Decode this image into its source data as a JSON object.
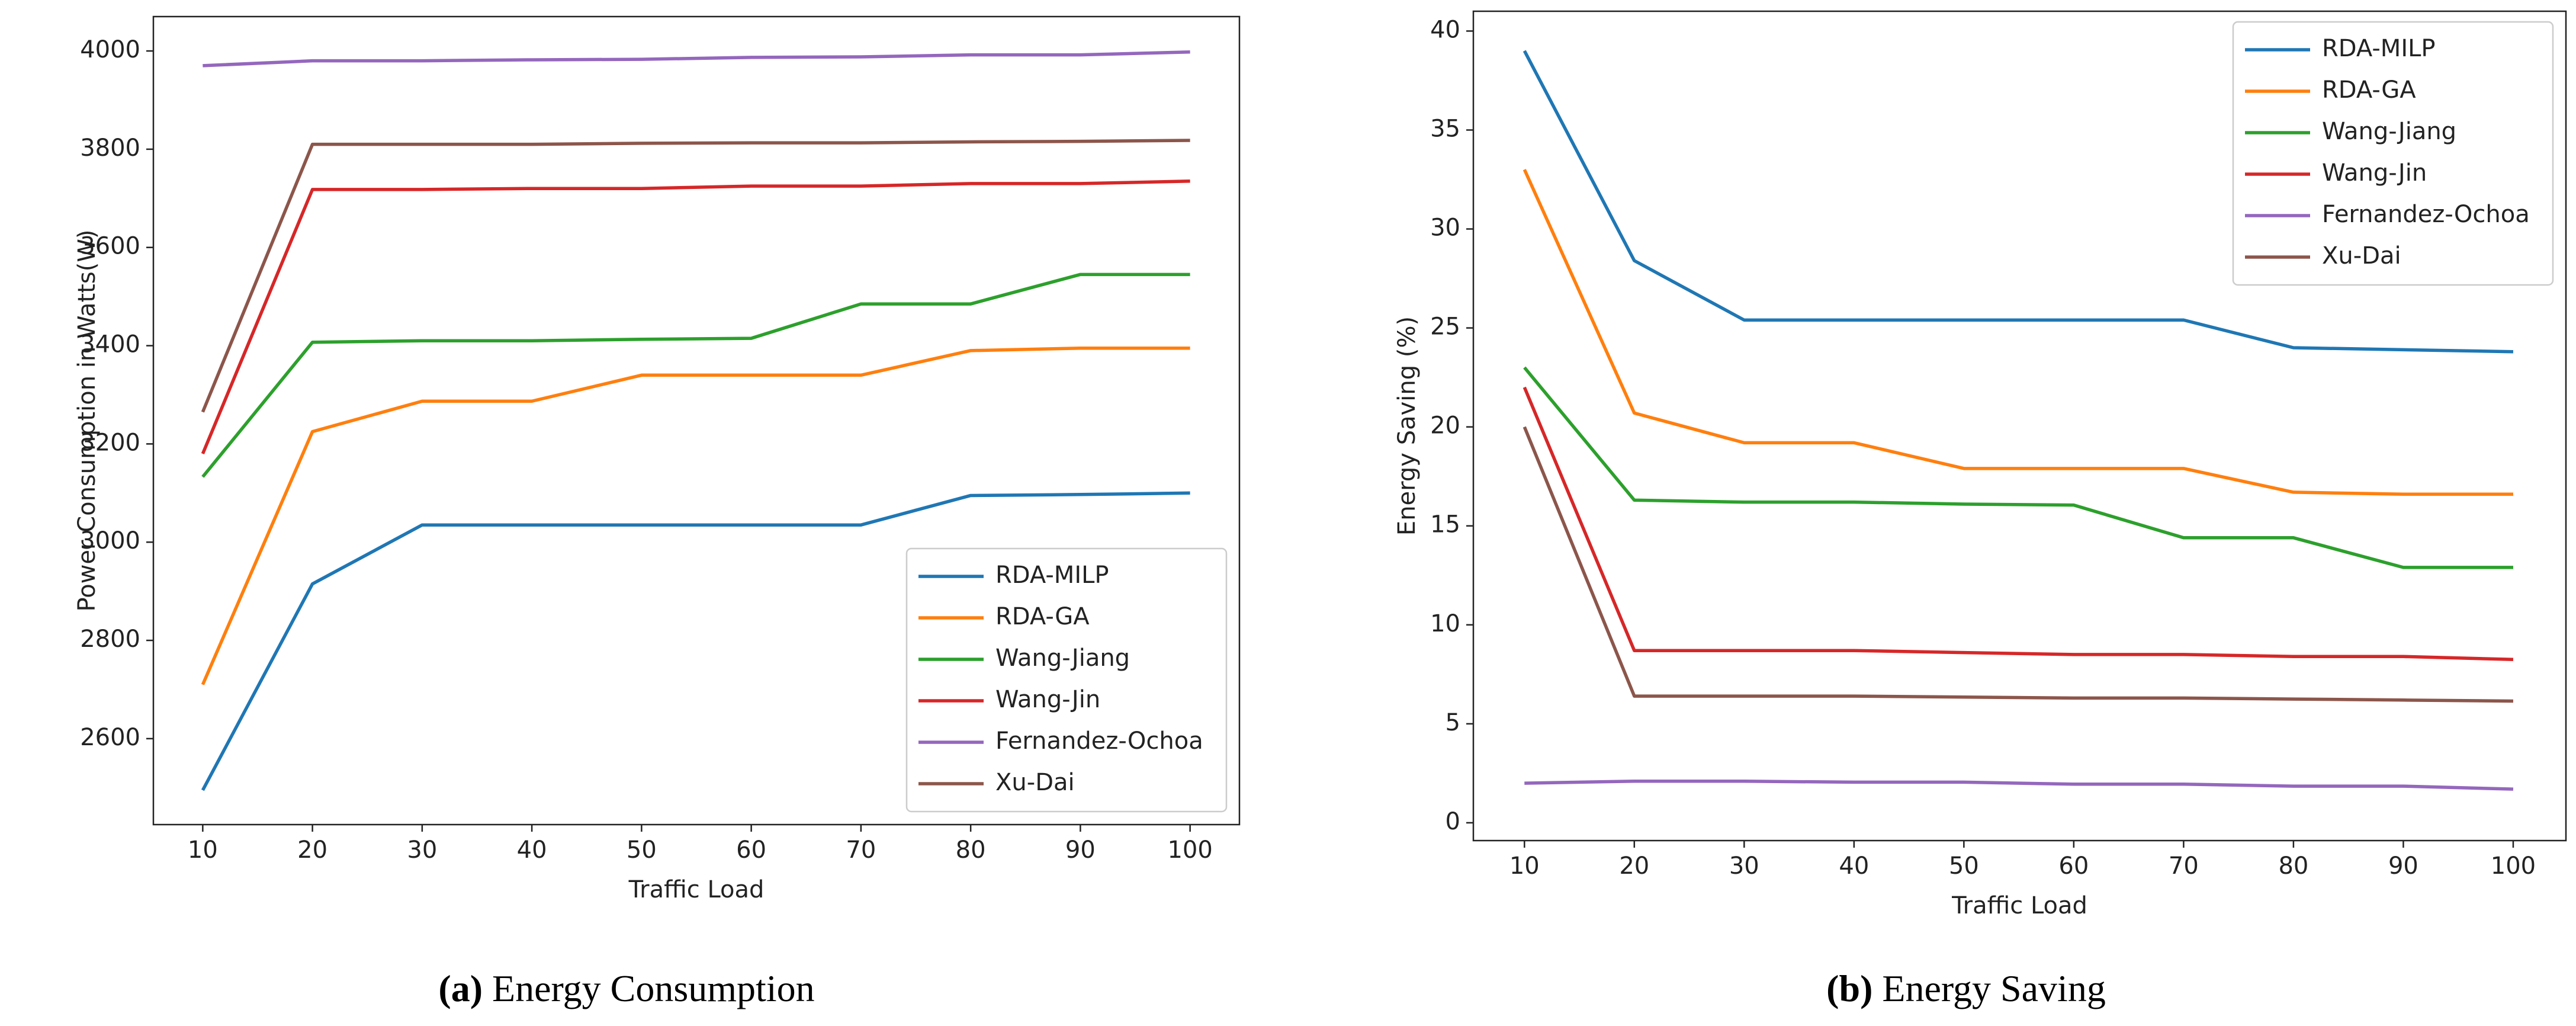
{
  "chart_data": [
    {
      "type": "line",
      "caption_label": "(a)",
      "caption": "Energy Consumption",
      "xlabel": "Traffic Load",
      "ylabel": "Power Consumption in Watts(W)",
      "x": [
        10,
        20,
        30,
        40,
        50,
        60,
        70,
        80,
        90,
        100
      ],
      "xlim": [
        5.5,
        104.5
      ],
      "xticks": [
        10,
        20,
        30,
        40,
        50,
        60,
        70,
        80,
        90,
        100
      ],
      "ylim": [
        2425,
        4070
      ],
      "yticks": [
        2600,
        2800,
        3000,
        3200,
        3400,
        3600,
        3800,
        4000
      ],
      "legend": "lower right",
      "series": [
        {
          "name": "RDA-MILP",
          "color": "#1f77b4",
          "values": [
            2495,
            2915,
            3035,
            3035,
            3035,
            3035,
            3035,
            3095,
            3097,
            3100
          ]
        },
        {
          "name": "RDA-GA",
          "color": "#ff7f0e",
          "values": [
            2710,
            3225,
            3287,
            3287,
            3340,
            3340,
            3340,
            3390,
            3395,
            3395
          ]
        },
        {
          "name": "Wang-Jiang",
          "color": "#2ca02c",
          "values": [
            3133,
            3407,
            3410,
            3410,
            3413,
            3415,
            3485,
            3485,
            3545,
            3545
          ]
        },
        {
          "name": "Wang-Jin",
          "color": "#d62728",
          "values": [
            3180,
            3718,
            3718,
            3720,
            3720,
            3725,
            3725,
            3730,
            3730,
            3735
          ]
        },
        {
          "name": "Fernandez-Ochoa",
          "color": "#9467bd",
          "values": [
            3970,
            3980,
            3980,
            3982,
            3983,
            3987,
            3988,
            3992,
            3992,
            3998
          ]
        },
        {
          "name": "Xu-Dai",
          "color": "#8c564b",
          "values": [
            3265,
            3810,
            3810,
            3810,
            3812,
            3813,
            3813,
            3815,
            3816,
            3818
          ]
        }
      ]
    },
    {
      "type": "line",
      "caption_label": "(b)",
      "caption": "Energy Saving",
      "xlabel": "Traffic Load",
      "ylabel": "Energy Saving (%)",
      "x": [
        10,
        20,
        30,
        40,
        50,
        60,
        70,
        80,
        90,
        100
      ],
      "xlim": [
        5.35,
        104.8
      ],
      "xticks": [
        10,
        20,
        30,
        40,
        50,
        60,
        70,
        80,
        90,
        100
      ],
      "ylim": [
        -0.9,
        41
      ],
      "yticks": [
        0,
        5,
        10,
        15,
        20,
        25,
        30,
        35,
        40
      ],
      "legend": "upper right",
      "series": [
        {
          "name": "RDA-MILP",
          "color": "#1f77b4",
          "values": [
            39,
            28.4,
            25.4,
            25.4,
            25.4,
            25.4,
            25.4,
            24,
            23.9,
            23.8
          ]
        },
        {
          "name": "RDA-GA",
          "color": "#ff7f0e",
          "values": [
            33,
            20.7,
            19.2,
            19.2,
            17.9,
            17.9,
            17.9,
            16.7,
            16.6,
            16.6
          ]
        },
        {
          "name": "Wang-Jiang",
          "color": "#2ca02c",
          "values": [
            23,
            16.3,
            16.2,
            16.2,
            16.1,
            16.05,
            14.4,
            14.4,
            12.9,
            12.9
          ]
        },
        {
          "name": "Wang-Jin",
          "color": "#d62728",
          "values": [
            22,
            8.7,
            8.7,
            8.7,
            8.6,
            8.5,
            8.5,
            8.4,
            8.4,
            8.25
          ]
        },
        {
          "name": "Fernandez-Ochoa",
          "color": "#9467bd",
          "values": [
            2.0,
            2.1,
            2.1,
            2.05,
            2.05,
            1.95,
            1.95,
            1.85,
            1.85,
            1.7
          ]
        },
        {
          "name": "Xu-Dai",
          "color": "#8c564b",
          "values": [
            20,
            6.4,
            6.4,
            6.4,
            6.35,
            6.3,
            6.3,
            6.25,
            6.2,
            6.15
          ]
        }
      ]
    }
  ]
}
